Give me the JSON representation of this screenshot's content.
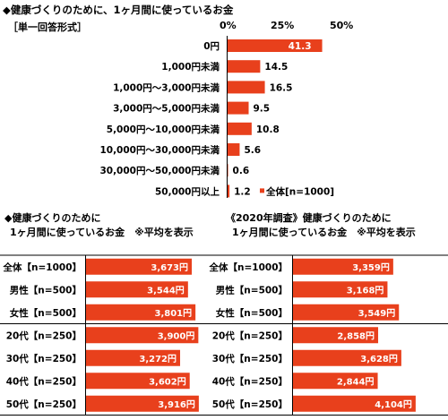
{
  "chart_data": [
    {
      "type": "bar",
      "title": "◆健康づくりのために、1ヶ月間に使っているお金",
      "subtitle": "［単一回答形式］",
      "categories": [
        "0円",
        "1,000円未満",
        "1,000円～3,000円未満",
        "3,000円～5,000円未満",
        "5,000円～10,000円未満",
        "10,000円～30,000円未満",
        "30,000円～50,000円未満",
        "50,000円以上"
      ],
      "series": [
        {
          "name": "全体[n=1000]",
          "values": [
            41.3,
            14.5,
            16.5,
            9.5,
            10.8,
            5.6,
            0.6,
            1.2
          ]
        }
      ],
      "xticks": [
        "0%",
        "25%",
        "50%"
      ],
      "xlim": [
        0,
        50
      ],
      "unit": "%",
      "legend": "bottom-right",
      "color": "#e8401c"
    },
    {
      "type": "bar",
      "title": [
        "◆健康づくりのために",
        "1ヶ月間に使っているお金　※平均を表示"
      ],
      "categories": [
        "全体【n=1000】",
        "男性【n=500】",
        "女性【n=500】",
        "20代【n=250】",
        "30代【n=250】",
        "40代【n=250】",
        "50代【n=250】"
      ],
      "values": [
        3673,
        3544,
        3801,
        3900,
        3272,
        3602,
        3916
      ],
      "value_labels": [
        "3,673円",
        "3,544円",
        "3,801円",
        "3,900円",
        "3,272円",
        "3,602円",
        "3,916円"
      ],
      "xlim": [
        0,
        5000
      ],
      "color": "#e8401c"
    },
    {
      "type": "bar",
      "title": [
        "《2020年調査》健康づくりのために",
        "1ヶ月間に使っているお金　※平均を表示"
      ],
      "categories": [
        "全体【n=1000】",
        "男性【n=500】",
        "女性【n=500】",
        "20代【n=250】",
        "30代【n=250】",
        "40代【n=250】",
        "50代【n=250】"
      ],
      "values": [
        3359,
        3168,
        3549,
        2858,
        3628,
        2844,
        4104
      ],
      "value_labels": [
        "3,359円",
        "3,168円",
        "3,549円",
        "2,858円",
        "3,628円",
        "2,844円",
        "4,104円"
      ],
      "xlim": [
        0,
        5000
      ],
      "color": "#e8401c"
    }
  ]
}
